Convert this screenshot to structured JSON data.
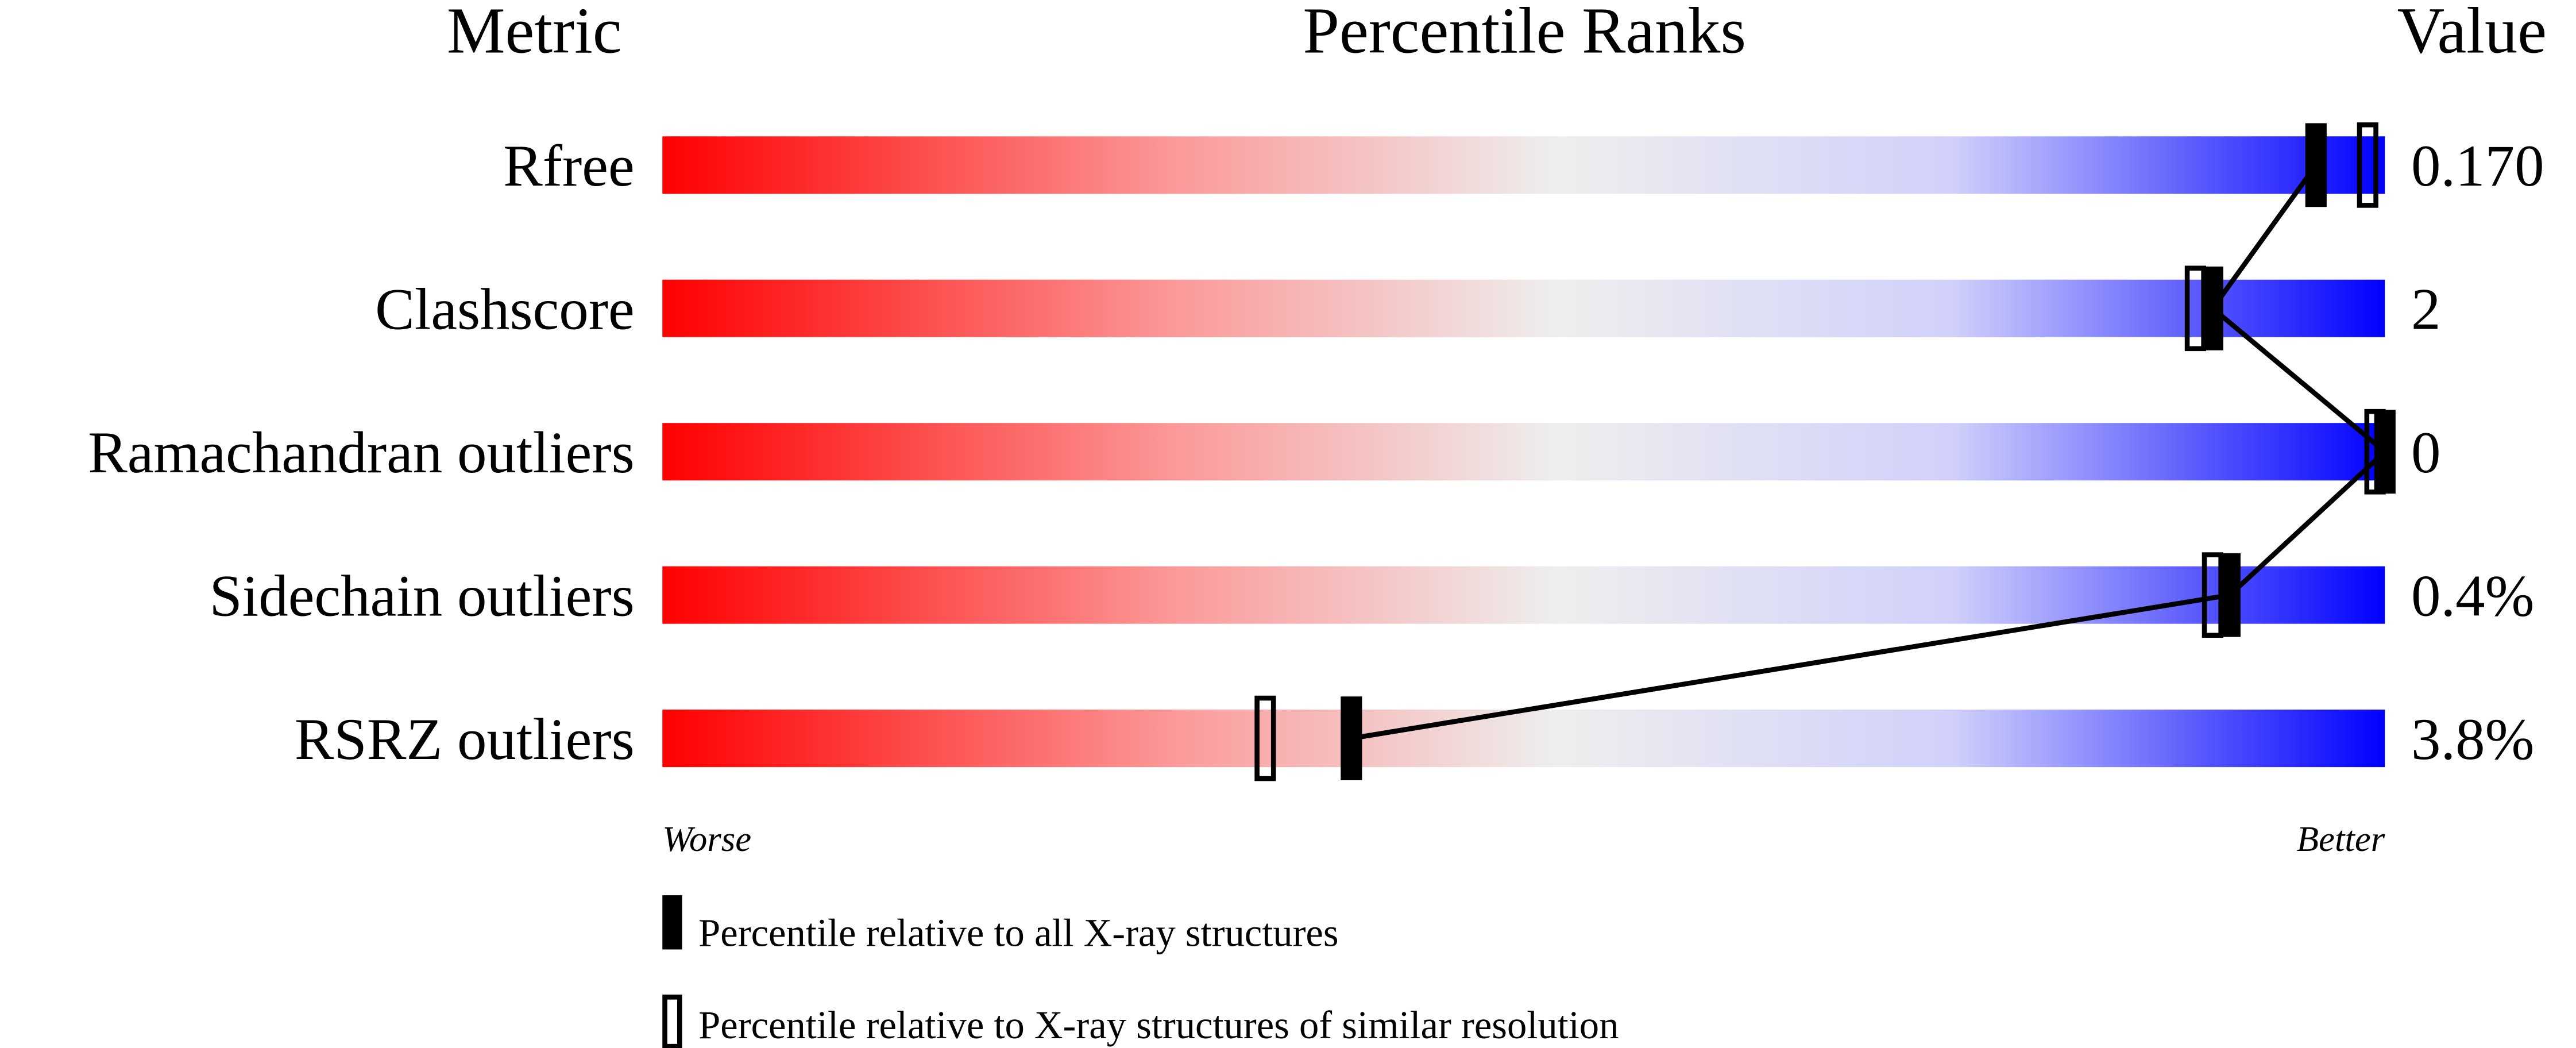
{
  "chart_data": {
    "type": "bar",
    "title": "Percentile Ranks",
    "column_headers": {
      "metric": "Metric",
      "ranks": "Percentile Ranks",
      "value": "Value"
    },
    "xlim": [
      0,
      100
    ],
    "axis_labels": {
      "left": "Worse",
      "right": "Better"
    },
    "gradient_colors": {
      "worse": "#ff0000",
      "middle": "#eeeeee",
      "better": "#0000ff"
    },
    "metrics": [
      {
        "label": "Rfree",
        "value": "0.170",
        "percentile_all": 96,
        "percentile_similar": 99
      },
      {
        "label": "Clashscore",
        "value": "2",
        "percentile_all": 90,
        "percentile_similar": 89
      },
      {
        "label": "Ramachandran outliers",
        "value": "0",
        "percentile_all": 100,
        "percentile_similar": 100
      },
      {
        "label": "Sidechain outliers",
        "value": "0.4%",
        "percentile_all": 91,
        "percentile_similar": 90
      },
      {
        "label": "RSRZ outliers",
        "value": "3.8%",
        "percentile_all": 40,
        "percentile_similar": 35
      }
    ],
    "legend": [
      {
        "marker": "filled",
        "label": "Percentile relative to all X-ray structures"
      },
      {
        "marker": "open",
        "label": "Percentile relative to X-ray structures of similar resolution"
      }
    ]
  }
}
